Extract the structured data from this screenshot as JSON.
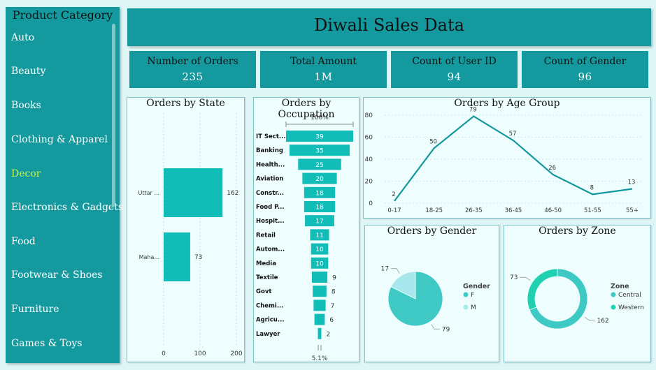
{
  "sidebar": {
    "title": "Product Category",
    "items": [
      {
        "label": "Auto",
        "selected": false
      },
      {
        "label": "Beauty",
        "selected": false
      },
      {
        "label": "Books",
        "selected": false
      },
      {
        "label": "Clothing & Apparel",
        "selected": false
      },
      {
        "label": "Decor",
        "selected": true
      },
      {
        "label": "Electronics & Gadgets",
        "selected": false
      },
      {
        "label": "Food",
        "selected": false
      },
      {
        "label": "Footwear & Shoes",
        "selected": false
      },
      {
        "label": "Furniture",
        "selected": false
      },
      {
        "label": "Games & Toys",
        "selected": false
      }
    ]
  },
  "header": {
    "title": "Diwali Sales Data"
  },
  "kpis": [
    {
      "label": "Number of Orders",
      "value": "235"
    },
    {
      "label": "Total Amount",
      "value": "1M"
    },
    {
      "label": "Count of User ID",
      "value": "94"
    },
    {
      "label": "Count of Gender",
      "value": "96"
    }
  ],
  "colors": {
    "teal": "#14999e",
    "bar": "#12bdb8",
    "light": "#a8e8ec",
    "card": "#eefefe"
  },
  "chart_data": [
    {
      "id": "state",
      "type": "bar",
      "orientation": "horizontal",
      "title": "Orders by State",
      "categories": [
        "Uttar ...",
        "Maha..."
      ],
      "values": [
        162,
        73
      ],
      "xlim": [
        0,
        200
      ],
      "xticks": [
        0,
        100,
        200
      ]
    },
    {
      "id": "occupation",
      "type": "funnel",
      "title": "Orders by Occupation",
      "top_label": "100%",
      "bottom_label": "5.1%",
      "categories": [
        "IT Sect...",
        "Banking",
        "Health...",
        "Aviation",
        "Constr...",
        "Food P...",
        "Hospit...",
        "Retail",
        "Autom...",
        "Media",
        "Textile",
        "Govt",
        "Chemi...",
        "Agricu...",
        "Lawyer"
      ],
      "values": [
        39,
        35,
        25,
        20,
        18,
        18,
        17,
        11,
        10,
        10,
        9,
        8,
        7,
        6,
        2
      ]
    },
    {
      "id": "age",
      "type": "line",
      "title": "Orders by Age Group",
      "categories": [
        "0-17",
        "18-25",
        "26-35",
        "36-45",
        "46-50",
        "51-55",
        "55+"
      ],
      "values": [
        2,
        50,
        79,
        57,
        26,
        8,
        13
      ],
      "ylim": [
        0,
        80
      ],
      "yticks": [
        0,
        20,
        40,
        60,
        80
      ]
    },
    {
      "id": "gender",
      "type": "pie",
      "title": "Orders by Gender",
      "legend_title": "Gender",
      "categories": [
        "F",
        "M"
      ],
      "values": [
        79,
        17
      ],
      "colors": [
        "#3fc9c4",
        "#a8e8ec"
      ]
    },
    {
      "id": "zone",
      "type": "donut",
      "title": "Orders by Zone",
      "legend_title": "Zone",
      "categories": [
        "Central",
        "Western"
      ],
      "values": [
        162,
        73
      ],
      "colors": [
        "#3fc9c4",
        "#1fd1b0"
      ]
    }
  ]
}
